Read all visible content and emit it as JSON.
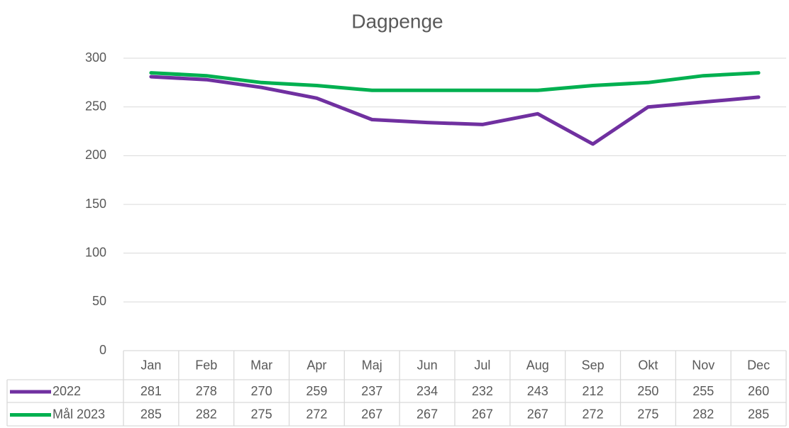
{
  "chart_data": {
    "type": "line",
    "title": "Dagpenge",
    "categories": [
      "Jan",
      "Feb",
      "Mar",
      "Apr",
      "Maj",
      "Jun",
      "Jul",
      "Aug",
      "Sep",
      "Okt",
      "Nov",
      "Dec"
    ],
    "series": [
      {
        "name": "2022",
        "color": "#7030a0",
        "values": [
          281,
          278,
          270,
          259,
          237,
          234,
          232,
          243,
          212,
          250,
          255,
          260
        ]
      },
      {
        "name": "Mål 2023",
        "color": "#00b050",
        "values": [
          285,
          282,
          275,
          272,
          267,
          267,
          267,
          267,
          272,
          275,
          282,
          285
        ]
      }
    ],
    "ylim": [
      0,
      300
    ],
    "yticks": [
      0,
      50,
      100,
      150,
      200,
      250,
      300
    ],
    "grid": true
  }
}
